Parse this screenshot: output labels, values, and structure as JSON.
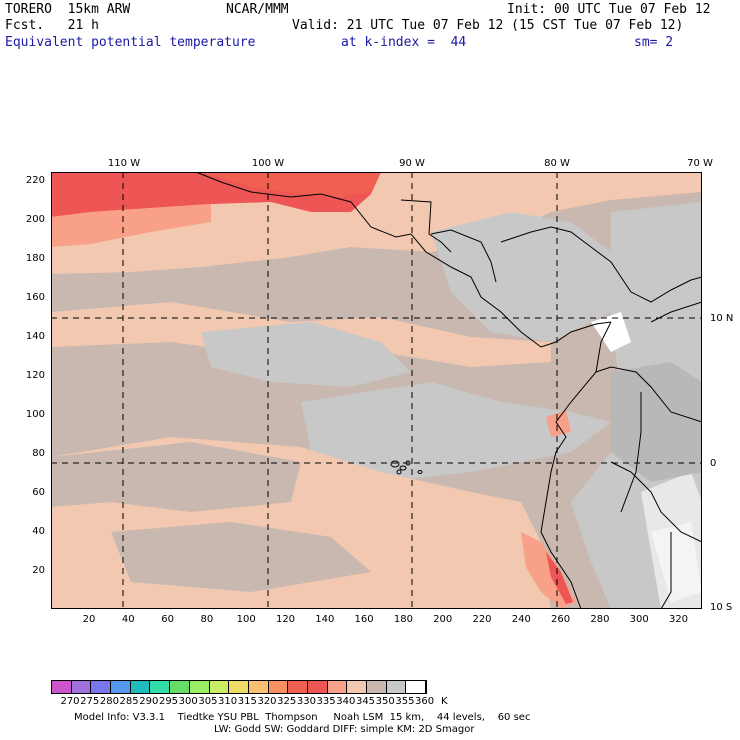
{
  "header": {
    "model": "TORERO  15km ARW",
    "org": "NCAR/MMM",
    "init": "Init: 00 UTC Tue 07 Feb 12",
    "fcst": "Fcst.   21 h",
    "valid": "Valid: 21 UTC Tue 07 Feb 12 (15 CST Tue 07 Feb 12)",
    "field": "Equivalent potential temperature",
    "level": "at k-index =  44",
    "smooth": "sm= 2"
  },
  "axes": {
    "y_ticks": [
      "220",
      "200",
      "180",
      "160",
      "140",
      "120",
      "100",
      "80",
      "60",
      "40",
      "20"
    ],
    "x_ticks": [
      "20",
      "40",
      "60",
      "80",
      "100",
      "120",
      "140",
      "160",
      "180",
      "200",
      "220",
      "240",
      "260",
      "280",
      "300",
      "320"
    ],
    "lon_labels": [
      "110 W",
      "100 W",
      "90 W",
      "80 W",
      "70 W"
    ],
    "lat_labels": [
      "10 N",
      "0",
      "10 S"
    ]
  },
  "colorbar": {
    "labels": [
      "270",
      "275",
      "280",
      "285",
      "290",
      "295",
      "300",
      "305",
      "310",
      "315",
      "320",
      "325",
      "330",
      "335",
      "340",
      "345",
      "350",
      "355",
      "360",
      "K"
    ],
    "colors": [
      "#cc55cc",
      "#a070dd",
      "#7777ee",
      "#5599ee",
      "#22bbbb",
      "#33ddaa",
      "#66dd66",
      "#99ee66",
      "#ccee66",
      "#eedd66",
      "#f8c070",
      "#f89060",
      "#f06050",
      "#ee5555",
      "#f8a088",
      "#f2c8b0",
      "#c8b8b0",
      "#c8c8c8",
      "#ffffff"
    ]
  },
  "footer": {
    "line1": "Model Info: V3.3.1    Tiedtke YSU PBL  Thompson     Noah LSM  15 km,    44 levels,    60 sec",
    "line2": "LW: Godd SW: Goddard DIFF: simple KM: 2D Smagor"
  }
}
